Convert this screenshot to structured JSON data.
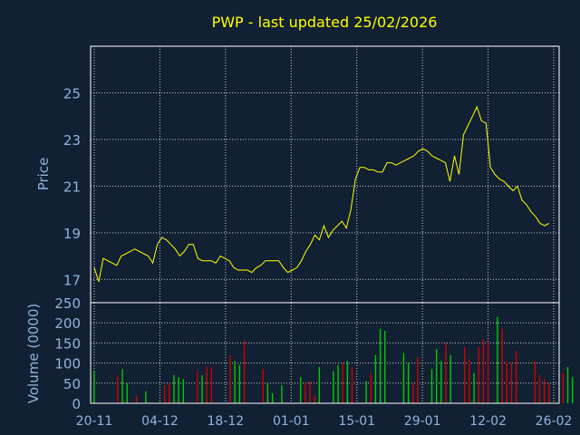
{
  "colors": {
    "background": "#112033",
    "frame": "#ffffff",
    "grid": "#d0d0d0",
    "title": "#ffff00",
    "axis_text": "#8fb4de",
    "price_line": "#ffff00",
    "volume_up": "#00cc00",
    "volume_down": "#cc0000"
  },
  "chart_data": {
    "type": "line",
    "title": "PWP - last updated 25/02/2026",
    "x_tick_labels": [
      "20-11",
      "04-12",
      "18-12",
      "01-01",
      "15-01",
      "29-01",
      "12-02",
      "26-02"
    ],
    "x_range": [
      "20-11",
      "26-02"
    ],
    "grid": true,
    "price_panel": {
      "ylabel": "Price",
      "ylim": [
        16,
        27
      ],
      "y_ticks": [
        17,
        19,
        21,
        23,
        25
      ],
      "series": [
        {
          "values": [
            17.5,
            16.9,
            17.9,
            17.8,
            17.7,
            17.6,
            18.0,
            18.1,
            18.2,
            18.3,
            18.2,
            18.1,
            18.0,
            17.7,
            18.5,
            18.8,
            18.7,
            18.5,
            18.3,
            18.0,
            18.2,
            18.5,
            18.5,
            17.9,
            17.8,
            17.8,
            17.8,
            17.7,
            18.0,
            17.9,
            17.8,
            17.5,
            17.4,
            17.4,
            17.4,
            17.3,
            17.5,
            17.6,
            17.8,
            17.8,
            17.8,
            17.8,
            17.5,
            17.3,
            17.4,
            17.5,
            17.8,
            18.2,
            18.5,
            18.9,
            18.7,
            19.3,
            18.8,
            19.1,
            19.3,
            19.5,
            19.2,
            20.0,
            21.3,
            21.8,
            21.8,
            21.7,
            21.7,
            21.6,
            21.6,
            22.0,
            22.0,
            21.9,
            22.0,
            22.1,
            22.2,
            22.3,
            22.5,
            22.6,
            22.5,
            22.3,
            22.2,
            22.1,
            22.0,
            21.2,
            22.3,
            21.5,
            23.2,
            23.6,
            24.0,
            24.4,
            23.8,
            23.7,
            21.8,
            21.5,
            21.3,
            21.2,
            21.0,
            20.8,
            21.0,
            20.4,
            20.2,
            19.9,
            19.7,
            19.4,
            19.3,
            19.4
          ]
        }
      ]
    },
    "volume_panel": {
      "ylabel": "Volume (0000)",
      "ylim": [
        0,
        250
      ],
      "y_ticks": [
        0,
        50,
        100,
        150,
        200,
        250
      ],
      "bars": [
        {
          "day": 1,
          "value": 80,
          "dir": "up"
        },
        {
          "day": 6,
          "value": 70,
          "dir": "down"
        },
        {
          "day": 7,
          "value": 85,
          "dir": "up"
        },
        {
          "day": 8,
          "value": 50,
          "dir": "up"
        },
        {
          "day": 10,
          "value": 20,
          "dir": "down"
        },
        {
          "day": 12,
          "value": 30,
          "dir": "up"
        },
        {
          "day": 16,
          "value": 45,
          "dir": "down"
        },
        {
          "day": 17,
          "value": 50,
          "dir": "down"
        },
        {
          "day": 18,
          "value": 70,
          "dir": "up"
        },
        {
          "day": 19,
          "value": 65,
          "dir": "up"
        },
        {
          "day": 20,
          "value": 60,
          "dir": "up"
        },
        {
          "day": 23,
          "value": 80,
          "dir": "down"
        },
        {
          "day": 24,
          "value": 70,
          "dir": "up"
        },
        {
          "day": 25,
          "value": 90,
          "dir": "down"
        },
        {
          "day": 26,
          "value": 90,
          "dir": "down"
        },
        {
          "day": 30,
          "value": 120,
          "dir": "down"
        },
        {
          "day": 31,
          "value": 105,
          "dir": "up"
        },
        {
          "day": 32,
          "value": 95,
          "dir": "up"
        },
        {
          "day": 33,
          "value": 155,
          "dir": "down"
        },
        {
          "day": 37,
          "value": 85,
          "dir": "down"
        },
        {
          "day": 38,
          "value": 50,
          "dir": "up"
        },
        {
          "day": 39,
          "value": 25,
          "dir": "up"
        },
        {
          "day": 41,
          "value": 45,
          "dir": "up"
        },
        {
          "day": 45,
          "value": 65,
          "dir": "up"
        },
        {
          "day": 46,
          "value": 50,
          "dir": "down"
        },
        {
          "day": 47,
          "value": 55,
          "dir": "down"
        },
        {
          "day": 48,
          "value": 20,
          "dir": "down"
        },
        {
          "day": 49,
          "value": 90,
          "dir": "up"
        },
        {
          "day": 52,
          "value": 80,
          "dir": "up"
        },
        {
          "day": 53,
          "value": 95,
          "dir": "up"
        },
        {
          "day": 54,
          "value": 100,
          "dir": "down"
        },
        {
          "day": 55,
          "value": 105,
          "dir": "up"
        },
        {
          "day": 56,
          "value": 90,
          "dir": "down"
        },
        {
          "day": 59,
          "value": 55,
          "dir": "up"
        },
        {
          "day": 60,
          "value": 75,
          "dir": "down"
        },
        {
          "day": 61,
          "value": 120,
          "dir": "up"
        },
        {
          "day": 62,
          "value": 185,
          "dir": "up"
        },
        {
          "day": 63,
          "value": 180,
          "dir": "up"
        },
        {
          "day": 67,
          "value": 125,
          "dir": "up"
        },
        {
          "day": 68,
          "value": 100,
          "dir": "up"
        },
        {
          "day": 69,
          "value": 50,
          "dir": "down"
        },
        {
          "day": 70,
          "value": 115,
          "dir": "down"
        },
        {
          "day": 73,
          "value": 85,
          "dir": "up"
        },
        {
          "day": 74,
          "value": 135,
          "dir": "up"
        },
        {
          "day": 75,
          "value": 105,
          "dir": "up"
        },
        {
          "day": 76,
          "value": 150,
          "dir": "down"
        },
        {
          "day": 77,
          "value": 120,
          "dir": "up"
        },
        {
          "day": 80,
          "value": 140,
          "dir": "down"
        },
        {
          "day": 81,
          "value": 110,
          "dir": "down"
        },
        {
          "day": 82,
          "value": 75,
          "dir": "up"
        },
        {
          "day": 83,
          "value": 140,
          "dir": "down"
        },
        {
          "day": 84,
          "value": 160,
          "dir": "down"
        },
        {
          "day": 85,
          "value": 150,
          "dir": "down"
        },
        {
          "day": 87,
          "value": 215,
          "dir": "up"
        },
        {
          "day": 88,
          "value": 185,
          "dir": "down"
        },
        {
          "day": 89,
          "value": 105,
          "dir": "down"
        },
        {
          "day": 90,
          "value": 100,
          "dir": "down"
        },
        {
          "day": 91,
          "value": 130,
          "dir": "down"
        },
        {
          "day": 95,
          "value": 105,
          "dir": "down"
        },
        {
          "day": 96,
          "value": 70,
          "dir": "down"
        },
        {
          "day": 97,
          "value": 60,
          "dir": "down"
        },
        {
          "day": 98,
          "value": 50,
          "dir": "down"
        },
        {
          "day": 101,
          "value": 75,
          "dir": "down"
        },
        {
          "day": 102,
          "value": 90,
          "dir": "up"
        },
        {
          "day": 103,
          "value": 65,
          "dir": "up"
        }
      ]
    }
  }
}
